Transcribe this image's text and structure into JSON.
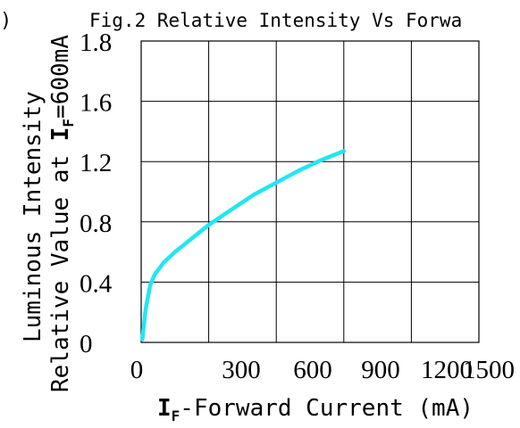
{
  "chart_data": {
    "type": "line",
    "title": "Fig.2 Relative Intensity Vs Forwa",
    "title_prefix": ")",
    "xlabel": {
      "symbol": "I",
      "subscript": "F",
      "text": "-Forward Current (mA)"
    },
    "ylabel": {
      "line1": "Luminous Intensity",
      "line2_prefix": "Relative Value at ",
      "line2_symbol": "I",
      "line2_subscript": "F",
      "line2_suffix": "=600mA"
    },
    "x_ticks": [
      "0",
      "300",
      "600",
      "900",
      "1200",
      "1500"
    ],
    "y_ticks": [
      "0",
      "0.4",
      "0.8",
      "1.2",
      "1.6",
      "1.8"
    ],
    "xlim": [
      0,
      1500
    ],
    "ylim": [
      0,
      1.8
    ],
    "grid": true,
    "series": [
      {
        "color": "#22e6f2",
        "x": [
          5,
          20,
          40,
          60,
          80,
          100,
          150,
          200,
          300,
          400,
          500,
          600,
          700,
          800,
          900
        ],
        "y": [
          0.02,
          0.22,
          0.38,
          0.45,
          0.49,
          0.53,
          0.6,
          0.66,
          0.78,
          0.88,
          0.98,
          1.06,
          1.14,
          1.21,
          1.27
        ]
      }
    ]
  }
}
